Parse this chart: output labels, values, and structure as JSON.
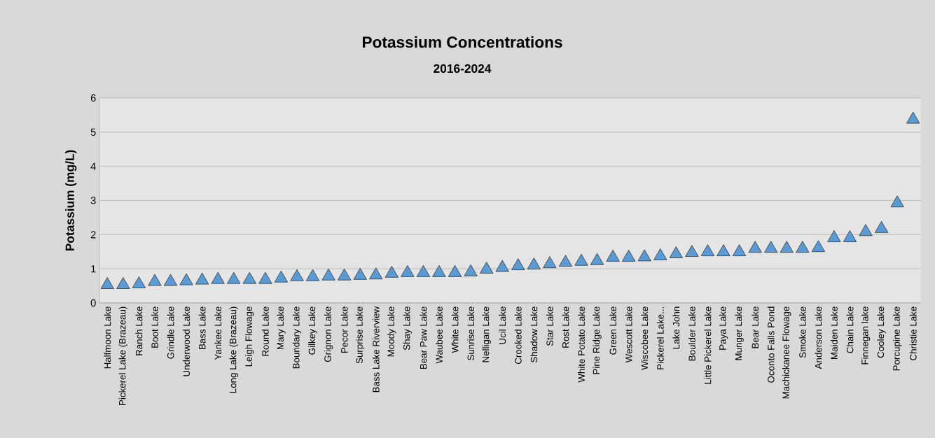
{
  "chart_data": {
    "type": "scatter",
    "title": "Potassium Concentrations",
    "subtitle": "2016-2024",
    "ylabel": "Potassium (mg/L)",
    "categories": [
      "Halfmoon Lake",
      "Pickerel Lake (Brazeau)",
      "Ranch Lake",
      "Boot Lake",
      "Grindle Lake",
      "Underwood Lake",
      "Bass Lake",
      "Yankee Lake",
      "Long Lake (Brazeau)",
      "Leigh Flowage",
      "Round Lake",
      "Mary Lake",
      "Boundary Lake",
      "Gilkey Lake",
      "Grignon Lake",
      "Pecor Lake",
      "Surprise Lake",
      "Bass Lake Riverview",
      "Moody Lake",
      "Shay Lake",
      "Bear Paw Lake",
      "Waubee Lake",
      "White Lake",
      "Sunrise Lake",
      "Nelligan Lake",
      "Ucil Lake",
      "Crooked Lake",
      "Shadow Lake",
      "Star Lake",
      "Rost Lake",
      "White Potato Lake",
      "Pine Ridge Lake",
      "Green Lake",
      "Wescott Lake",
      "Wiscobee Lake",
      "Pickerel Lake...",
      "Lake John",
      "Boulder Lake",
      "Little Pickerel Lake",
      "Paya Lake",
      "Munger Lake",
      "Bear Lake",
      "Oconto Falls Pond",
      "Machickanee Flowage",
      "Smoke Lake",
      "Anderson Lake",
      "Maiden Lake",
      "Chain Lake",
      "Finnegan lake",
      "Cooley Lake",
      "Porcupine Lake",
      "Christie Lake"
    ],
    "values": [
      0.53,
      0.53,
      0.55,
      0.62,
      0.62,
      0.64,
      0.66,
      0.68,
      0.68,
      0.68,
      0.68,
      0.72,
      0.76,
      0.76,
      0.78,
      0.78,
      0.8,
      0.81,
      0.86,
      0.88,
      0.88,
      0.88,
      0.88,
      0.9,
      0.98,
      1.03,
      1.08,
      1.1,
      1.14,
      1.18,
      1.21,
      1.23,
      1.33,
      1.33,
      1.34,
      1.37,
      1.43,
      1.47,
      1.49,
      1.49,
      1.49,
      1.59,
      1.59,
      1.59,
      1.59,
      1.61,
      1.9,
      1.9,
      2.08,
      2.17,
      2.92,
      5.37
    ],
    "color": "#5b9bd5",
    "marker": "triangle",
    "grid": "y",
    "ylim": [
      0,
      6
    ],
    "yticks": [
      0,
      1,
      2,
      3,
      4,
      5,
      6
    ]
  }
}
